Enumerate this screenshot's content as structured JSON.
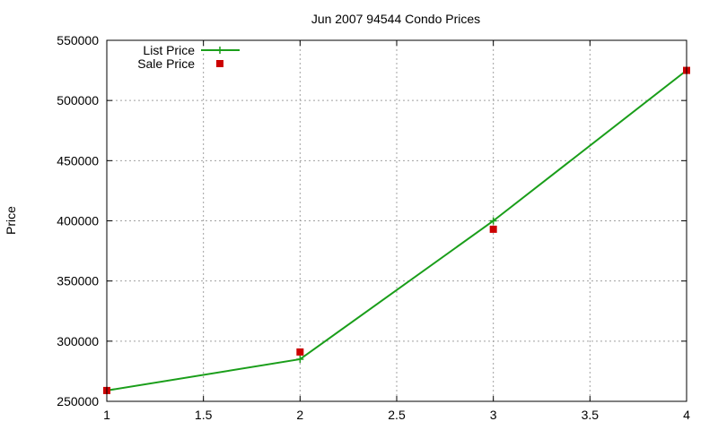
{
  "chart_data": {
    "type": "line",
    "title": "Jun 2007 94544 Condo Prices",
    "xlabel": "",
    "ylabel": "Price",
    "xlim": [
      1,
      4
    ],
    "ylim": [
      250000,
      550000
    ],
    "x_ticks": [
      "1",
      "1.5",
      "2",
      "2.5",
      "3",
      "3.5",
      "4"
    ],
    "y_ticks": [
      "250000",
      "300000",
      "350000",
      "400000",
      "450000",
      "500000",
      "550000"
    ],
    "grid": true,
    "legend_position": "top-left",
    "series": [
      {
        "name": "List Price",
        "style": "line+plus",
        "color": "#1a9e1a",
        "points": [
          [
            1,
            259000
          ],
          [
            2,
            285000
          ],
          [
            3,
            400000
          ],
          [
            4,
            525000
          ]
        ]
      },
      {
        "name": "Sale Price",
        "style": "square",
        "color": "#cc0000",
        "points": [
          [
            1,
            259000
          ],
          [
            2,
            291000
          ],
          [
            3,
            393000
          ],
          [
            4,
            525000
          ]
        ]
      }
    ]
  }
}
